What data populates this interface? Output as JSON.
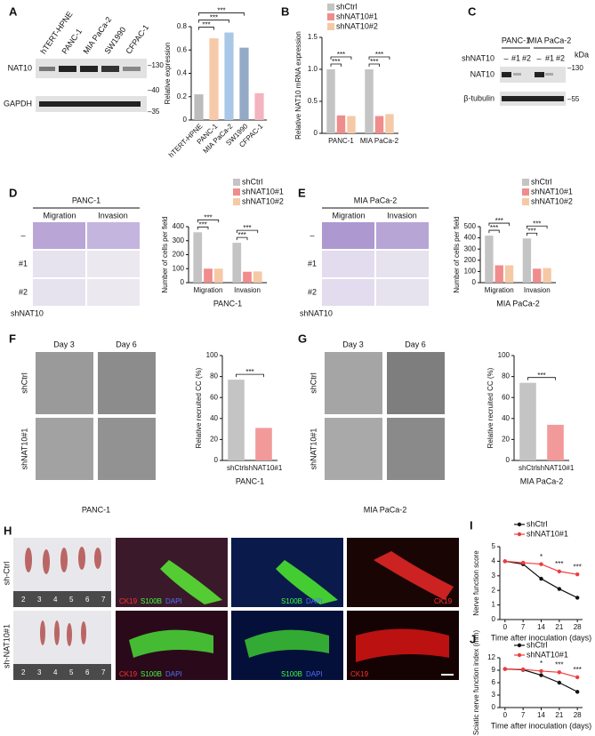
{
  "chart_data": [
    {
      "type": "bar",
      "ylabel": "Relative expression",
      "categories": [
        "hTERT-HPNE",
        "PANC-1",
        "MIA PaCa-2",
        "SW1990",
        "CFPAC-1"
      ],
      "values": [
        0.22,
        0.7,
        0.75,
        0.62,
        0.23
      ],
      "colors": [
        "#bcbcbc",
        "#f6c9a8",
        "#a9c8e8",
        "#93a9c6",
        "#f3b4bf"
      ],
      "ylim": [
        0,
        0.8
      ],
      "yticks": [
        0,
        0.2,
        0.4,
        0.6,
        0.8
      ],
      "annotations": [
        "***",
        "***",
        "***"
      ]
    },
    {
      "type": "bar",
      "ylabel": "Relative NAT10 mRNA expression",
      "categories": [
        "PANC-1",
        "MIA PaCa-2"
      ],
      "series": [
        {
          "name": "shCtrl",
          "color": "#c4c4c4",
          "values": [
            1.0,
            1.0
          ]
        },
        {
          "name": "shNAT10#1",
          "color": "#f08c8c",
          "values": [
            0.28,
            0.27
          ]
        },
        {
          "name": "shNAT10#2",
          "color": "#f5c9a5",
          "values": [
            0.27,
            0.3
          ]
        }
      ],
      "ylim": [
        0,
        1.5
      ],
      "yticks": [
        0,
        0.5,
        {
          "value": 1,
          "label": "1.0"
        },
        1.5
      ],
      "annotations": [
        "***",
        "***",
        "***",
        "***"
      ]
    },
    {
      "type": "bar",
      "ylabel": "Number of cells per field",
      "xlabel": "PANC-1",
      "categories": [
        "Migration",
        "Invasion"
      ],
      "series": [
        {
          "name": "shCtrl",
          "color": "#c4c4c4",
          "values": [
            360,
            285
          ]
        },
        {
          "name": "shNAT10#1",
          "color": "#f08c8c",
          "values": [
            100,
            78
          ]
        },
        {
          "name": "shNAT10#2",
          "color": "#f5c9a5",
          "values": [
            100,
            80
          ]
        }
      ],
      "ylim": [
        0,
        400
      ],
      "yticks": [
        0,
        100,
        200,
        300,
        400
      ],
      "annotations": [
        "***",
        "***",
        "***",
        "***"
      ]
    },
    {
      "type": "bar",
      "ylabel": "Number of cells per field",
      "xlabel": "MIA PaCa-2",
      "categories": [
        "Migration",
        "Invasion"
      ],
      "series": [
        {
          "name": "shCtrl",
          "color": "#c4c4c4",
          "values": [
            420,
            395
          ]
        },
        {
          "name": "shNAT10#1",
          "color": "#f08c8c",
          "values": [
            155,
            125
          ]
        },
        {
          "name": "shNAT10#2",
          "color": "#f5c9a5",
          "values": [
            155,
            130
          ]
        }
      ],
      "ylim": [
        0,
        500
      ],
      "yticks": [
        0,
        100,
        200,
        300,
        400,
        500
      ],
      "annotations": [
        "***",
        "***",
        "***",
        "***"
      ]
    },
    {
      "type": "bar",
      "ylabel": "Relative recruited CC (%)",
      "xlabel": "PANC-1",
      "categories": [
        "shCtrl",
        "shNAT10#1"
      ],
      "values": [
        77,
        31
      ],
      "colors": [
        "#c4c4c4",
        "#f29a9a"
      ],
      "ylim": [
        0,
        100
      ],
      "yticks": [
        0,
        20,
        40,
        60,
        80,
        100
      ],
      "annotations": [
        "***"
      ]
    },
    {
      "type": "bar",
      "ylabel": "Relative recruited CC (%)",
      "xlabel": "MIA PaCa-2",
      "categories": [
        "shCtrl",
        "shNAT10#1"
      ],
      "values": [
        74,
        34
      ],
      "colors": [
        "#c4c4c4",
        "#f29a9a"
      ],
      "ylim": [
        0,
        100
      ],
      "yticks": [
        0,
        20,
        40,
        60,
        80,
        100
      ],
      "annotations": [
        "***"
      ]
    },
    {
      "type": "line",
      "ylabel": "Nerve function score",
      "xlabel": "Time after inoculation (days)",
      "x": [
        0,
        7,
        14,
        21,
        28
      ],
      "series": [
        {
          "name": "shCtrl",
          "color": "#111111",
          "values": [
            4.0,
            3.8,
            2.8,
            2.1,
            1.5
          ]
        },
        {
          "name": "shNAT10#1",
          "color": "#f03c3c",
          "values": [
            4.0,
            3.9,
            3.8,
            3.3,
            3.1
          ]
        }
      ],
      "xlim": [
        -2,
        30
      ],
      "xticks": [
        0,
        7,
        14,
        21,
        28
      ],
      "ylim": [
        0,
        5
      ],
      "yticks": [
        0,
        1,
        2,
        3,
        4,
        5
      ],
      "annotations": [
        "*",
        "***",
        "***"
      ]
    },
    {
      "type": "line",
      "ylabel": "Sciatic nerve function index (mm)",
      "xlabel": "Time after inoculation (days)",
      "x": [
        0,
        7,
        14,
        21,
        28
      ],
      "series": [
        {
          "name": "shCtrl",
          "color": "#111111",
          "values": [
            9.3,
            9.1,
            7.8,
            6.0,
            3.8
          ]
        },
        {
          "name": "shNAT10#1",
          "color": "#f03c3c",
          "values": [
            9.3,
            9.2,
            8.8,
            8.5,
            7.3
          ]
        }
      ],
      "xlim": [
        -2,
        30
      ],
      "xticks": [
        0,
        7,
        14,
        21,
        28
      ],
      "ylim": [
        0,
        12
      ],
      "yticks": [
        0,
        3,
        6,
        9,
        12
      ],
      "annotations": [
        "*",
        "***",
        "***"
      ]
    }
  ],
  "panels": {
    "letters": [
      "A",
      "B",
      "C",
      "D",
      "E",
      "F",
      "G",
      "H",
      "I",
      "J"
    ],
    "blot_a": {
      "lanes": [
        "hTERT-HPNE",
        "PANC-1",
        "MIA PaCa-2",
        "SW1990",
        "CFPAC-1"
      ],
      "proteins": [
        "NAT10",
        "GAPDH"
      ],
      "markers": [
        "–130",
        "–40",
        "–35"
      ]
    },
    "blot_c": {
      "lines": [
        "PANC-1",
        "MIA PaCa-2"
      ],
      "kda": "kDa",
      "row_label": "shNAT10",
      "lanes": [
        "–",
        "#1",
        "#2",
        "–",
        "#1",
        "#2"
      ],
      "proteins": [
        "NAT10",
        "β-tubulin"
      ],
      "markers": [
        "–130",
        "–55"
      ]
    },
    "d_images": {
      "title": "PANC-1",
      "columns": [
        "Migration",
        "Invasion"
      ],
      "rows": [
        "–",
        "#1",
        "#2"
      ],
      "footer": "shNAT10"
    },
    "e_images": {
      "title": "MIA PaCa-2",
      "columns": [
        "Migration",
        "Invasion"
      ],
      "rows": [
        "–",
        "#1",
        "#2"
      ],
      "footer": "shNAT10"
    },
    "f_images": {
      "columns": [
        "Day 3",
        "Day 6"
      ],
      "rows": [
        "shCtrl",
        "shNAT10#1"
      ],
      "footer": "PANC-1"
    },
    "g_images": {
      "columns": [
        "Day 3",
        "Day 6"
      ],
      "rows": [
        "shCtrl",
        "shNAT10#1"
      ],
      "footer": "MIA PaCa-2"
    },
    "h_images": {
      "rows": [
        "sh-Ctrl",
        "sh-NAT10#1"
      ],
      "ruler": [
        "2",
        "3",
        "4",
        "5",
        "6",
        "7"
      ],
      "stains": [
        "CK19",
        "S100B",
        "DAPI"
      ]
    }
  }
}
